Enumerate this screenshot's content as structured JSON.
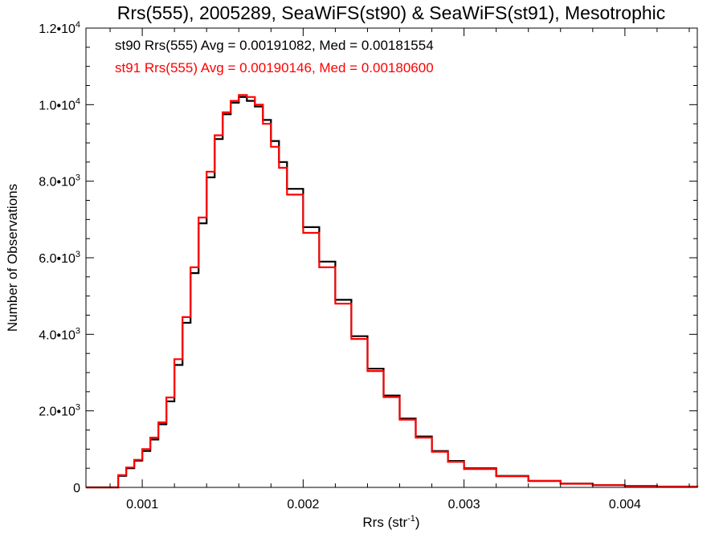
{
  "chart_data": {
    "type": "line",
    "title": "Rrs(555), 2005289, SeaWiFS(st90) & SeaWiFS(st91), Mesotrophic",
    "xlabel_main": "Rrs (str",
    "xlabel_sup": "-1",
    "xlabel_close": ")",
    "ylabel": "Number of Observations",
    "xlim": [
      0.00065,
      0.00445
    ],
    "ylim": [
      0,
      12000
    ],
    "x_ticks": [
      0.001,
      0.002,
      0.003,
      0.004
    ],
    "x_tick_labels": [
      "0.001",
      "0.002",
      "0.003",
      "0.004"
    ],
    "y_ticks": [
      {
        "value": 0,
        "mantissa": "0",
        "exp": ""
      },
      {
        "value": 2000,
        "mantissa": "2.0•10",
        "exp": "3"
      },
      {
        "value": 4000,
        "mantissa": "4.0•10",
        "exp": "3"
      },
      {
        "value": 6000,
        "mantissa": "6.0•10",
        "exp": "3"
      },
      {
        "value": 8000,
        "mantissa": "8.0•10",
        "exp": "3"
      },
      {
        "value": 10000,
        "mantissa": "1.0•10",
        "exp": "4"
      },
      {
        "value": 12000,
        "mantissa": "1.2•10",
        "exp": "4"
      }
    ],
    "step": "histogram",
    "series": [
      {
        "name": "st90",
        "color": "#000000",
        "x": [
          0.00065,
          0.0008,
          0.00085,
          0.0009,
          0.00095,
          0.001,
          0.00105,
          0.0011,
          0.00115,
          0.0012,
          0.00125,
          0.0013,
          0.00135,
          0.0014,
          0.00145,
          0.0015,
          0.00155,
          0.0016,
          0.00165,
          0.0017,
          0.00175,
          0.0018,
          0.00185,
          0.0019,
          0.002,
          0.0021,
          0.0022,
          0.0023,
          0.0024,
          0.0025,
          0.0026,
          0.0027,
          0.0028,
          0.0029,
          0.003,
          0.0032,
          0.0034,
          0.0036,
          0.0038,
          0.004,
          0.0042,
          0.00445
        ],
        "y": [
          0,
          0,
          300,
          500,
          700,
          950,
          1250,
          1650,
          2250,
          3200,
          4300,
          5600,
          6900,
          8100,
          9100,
          9750,
          10050,
          10200,
          10100,
          9950,
          9600,
          9050,
          8500,
          7800,
          6800,
          5900,
          4900,
          3950,
          3100,
          2400,
          1800,
          1330,
          950,
          690,
          500,
          300,
          170,
          100,
          60,
          40,
          20,
          10
        ]
      },
      {
        "name": "st91",
        "color": "#ff0000",
        "x": [
          0.00065,
          0.0008,
          0.00085,
          0.0009,
          0.00095,
          0.001,
          0.00105,
          0.0011,
          0.00115,
          0.0012,
          0.00125,
          0.0013,
          0.00135,
          0.0014,
          0.00145,
          0.0015,
          0.00155,
          0.0016,
          0.00165,
          0.0017,
          0.00175,
          0.0018,
          0.00185,
          0.0019,
          0.002,
          0.0021,
          0.0022,
          0.0023,
          0.0024,
          0.0025,
          0.0026,
          0.0027,
          0.0028,
          0.0029,
          0.003,
          0.0032,
          0.0034,
          0.0036,
          0.0038,
          0.004,
          0.0042,
          0.00445
        ],
        "y": [
          0,
          0,
          320,
          520,
          720,
          1000,
          1300,
          1700,
          2350,
          3350,
          4450,
          5750,
          7050,
          8250,
          9200,
          9800,
          10100,
          10250,
          10200,
          10000,
          9500,
          8900,
          8350,
          7650,
          6650,
          5750,
          4800,
          3880,
          3040,
          2360,
          1770,
          1300,
          930,
          670,
          480,
          290,
          165,
          95,
          58,
          38,
          18,
          8
        ]
      }
    ],
    "legend": [
      {
        "text": "st90 Rrs(555) Avg = 0.00191082, Med = 0.00181554",
        "color": "#000000"
      },
      {
        "text": "st91 Rrs(555) Avg = 0.00190146, Med = 0.00180600",
        "color": "#ff0000"
      }
    ],
    "legend_placement": "top-left",
    "grid": false
  }
}
